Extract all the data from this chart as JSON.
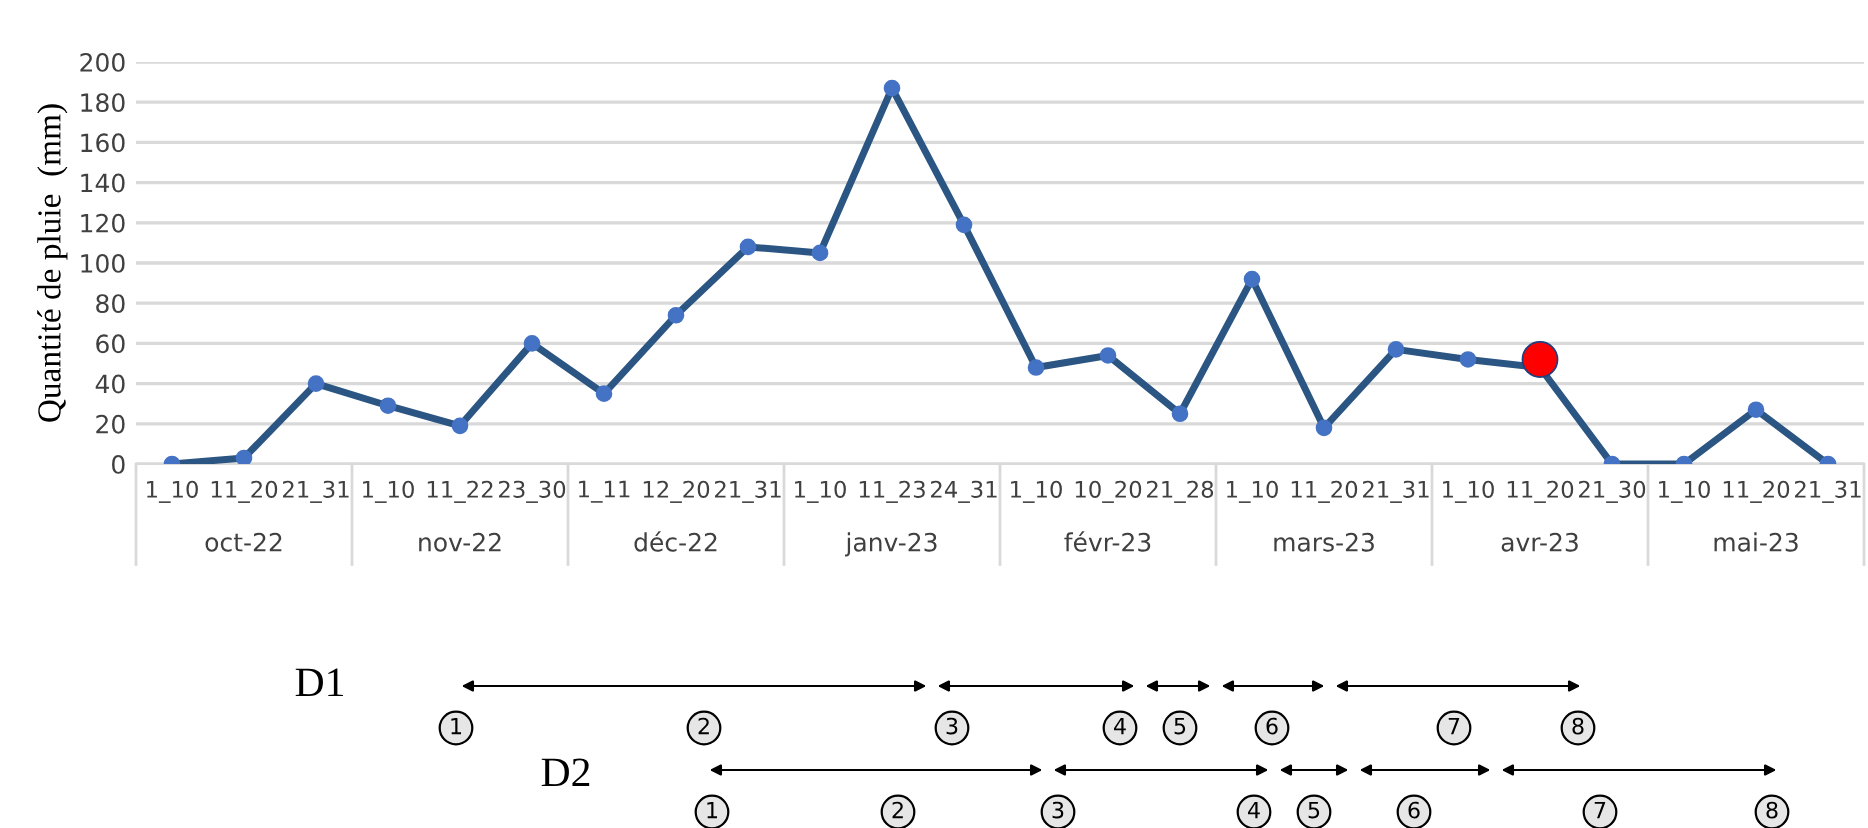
{
  "chart_data": {
    "type": "line",
    "ylabel": "Quantité de pluie  (mm)",
    "categories": [
      "1_10",
      "11_20",
      "21_31",
      "1_10",
      "11_22",
      "23_30",
      "1_11",
      "12_20",
      "21_31",
      "1_10",
      "11_23",
      "24_31",
      "1_10",
      "10_20",
      "21_28",
      "1_10",
      "11_20",
      "21_31",
      "1_10",
      "11_20",
      "21_30",
      "1_10",
      "11_20",
      "21_31"
    ],
    "series": [
      {
        "color": "#2b5582",
        "values": [
          0,
          3,
          40,
          29,
          19,
          60,
          35,
          74,
          108,
          105,
          187,
          119,
          48,
          54,
          25,
          92,
          18,
          57,
          52,
          48,
          0,
          0,
          27,
          0
        ]
      },
      {
        "type": "scatter",
        "color": "#ff0000",
        "values": [
          null,
          null,
          null,
          null,
          null,
          null,
          null,
          null,
          null,
          null,
          null,
          null,
          null,
          null,
          null,
          null,
          null,
          null,
          null,
          52,
          null,
          null,
          null,
          null
        ]
      }
    ],
    "ylim": [
      0,
      200
    ],
    "yticks": [
      0,
      20,
      40,
      60,
      80,
      100,
      120,
      140,
      160,
      180,
      200
    ],
    "grid": "y",
    "marker": "circle",
    "line_style": "solid",
    "annotations": [
      "oct-22",
      "nov-22",
      "déc-22",
      "janv-23",
      "févr-23",
      "mars-23",
      "avr-23",
      "mai-23",
      "D1",
      "1",
      "2",
      "3",
      "4",
      "5",
      "6",
      "7",
      "8",
      "D2",
      "1",
      "2",
      "3",
      "4",
      "5",
      "6",
      "7",
      "8"
    ]
  }
}
